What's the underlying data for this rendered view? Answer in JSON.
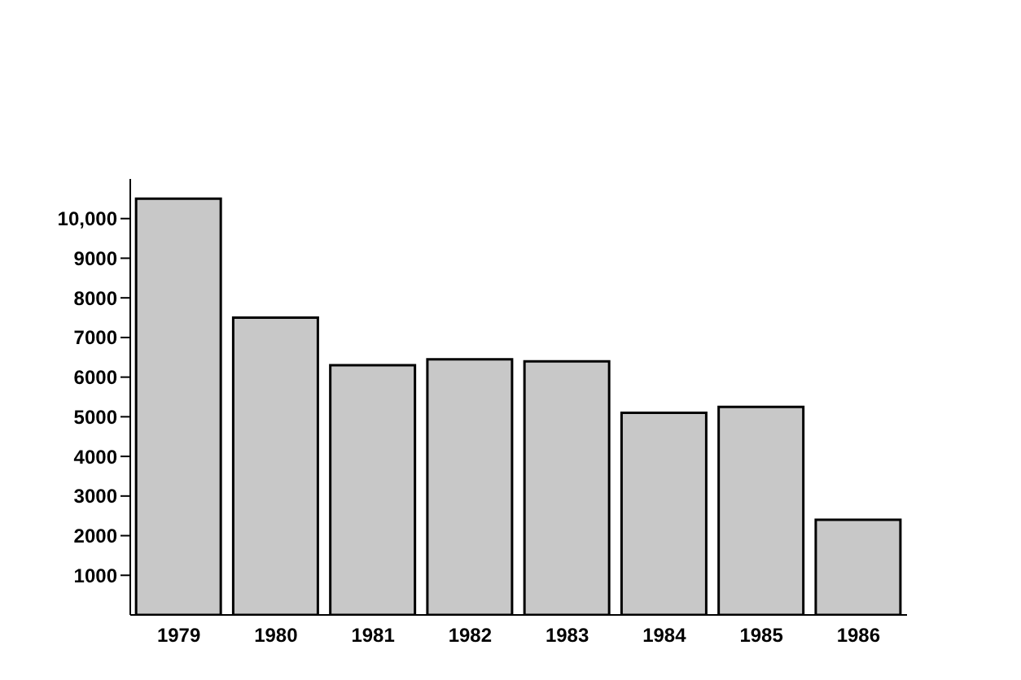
{
  "chart_data": {
    "type": "bar",
    "categories": [
      "1979",
      "1980",
      "1981",
      "1982",
      "1983",
      "1984",
      "1985",
      "1986"
    ],
    "values": [
      10500,
      7500,
      6300,
      6450,
      6400,
      5100,
      5250,
      2400
    ],
    "color": "#c8c8c8",
    "ylim": [
      0,
      11000
    ],
    "yticks": [
      1000,
      2000,
      3000,
      4000,
      5000,
      6000,
      7000,
      8000,
      9000,
      {
        "value": 10000,
        "label": "10,000"
      }
    ],
    "grid": false,
    "legend": false
  }
}
